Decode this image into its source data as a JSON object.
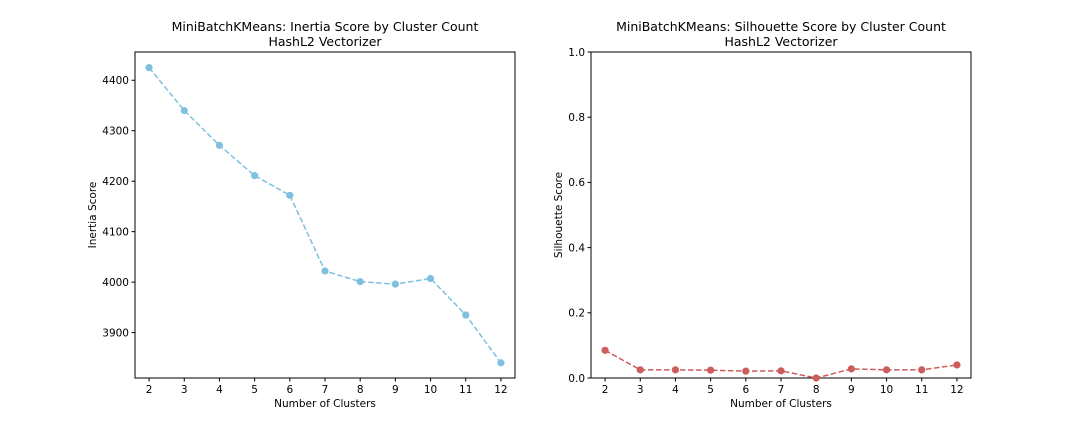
{
  "chart_data": [
    {
      "type": "line",
      "title": "MiniBatchKMeans: Inertia Score by Cluster Count",
      "subtitle": "HashL2 Vectorizer",
      "xlabel": "Number of Clusters",
      "ylabel": "Inertia Score",
      "x": [
        2,
        3,
        4,
        5,
        6,
        7,
        8,
        9,
        10,
        11,
        12
      ],
      "y": [
        4425,
        4340,
        4271,
        4211,
        4172,
        4022,
        4001,
        3996,
        4007,
        3935,
        3840
      ],
      "xlim": [
        1.6,
        12.4
      ],
      "ylim": [
        3810,
        4456
      ],
      "yticks": [
        3900,
        4000,
        4100,
        4200,
        4300,
        4400
      ],
      "color": "#7ec1de",
      "line_style": "dashed",
      "marker": "circle",
      "grid": false
    },
    {
      "type": "line",
      "title": "MiniBatchKMeans: Silhouette Score by Cluster Count",
      "subtitle": "HashL2 Vectorizer",
      "xlabel": "Number of Clusters",
      "ylabel": "Silhouette Score",
      "x": [
        2,
        3,
        4,
        5,
        6,
        7,
        8,
        9,
        10,
        11,
        12
      ],
      "y": [
        0.085,
        0.025,
        0.025,
        0.024,
        0.021,
        0.022,
        0.0,
        0.028,
        0.025,
        0.025,
        0.04
      ],
      "xlim": [
        1.6,
        12.4
      ],
      "ylim": [
        0.0,
        1.0
      ],
      "yticks": [
        0.0,
        0.2,
        0.4,
        0.6,
        0.8,
        1.0
      ],
      "ytick_labels": [
        "0.0",
        "0.2",
        "0.4",
        "0.6",
        "0.8",
        "1.0"
      ],
      "color": "#cd5c5c",
      "line_style": "dashed",
      "marker": "circle",
      "grid": false
    }
  ]
}
